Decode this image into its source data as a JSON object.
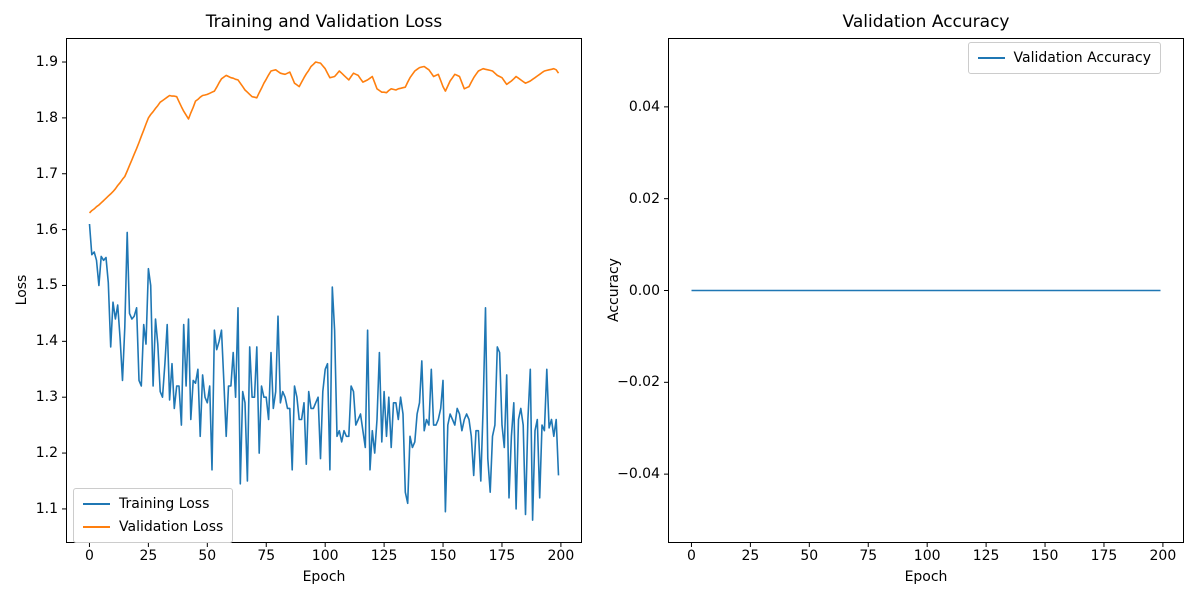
{
  "figure": {
    "background": "#ffffff",
    "axis_color": "#000000",
    "legend_border_color": "#cccccc"
  },
  "chart_data": [
    {
      "type": "line",
      "title": "Training and Validation Loss",
      "xlabel": "Epoch",
      "ylabel": "Loss",
      "xlim": [
        -9.95,
        208.95
      ],
      "ylim": [
        1.039,
        1.943
      ],
      "grid": false,
      "xticks": {
        "values": [
          0,
          25,
          50,
          75,
          100,
          125,
          150,
          175,
          200
        ],
        "labels": [
          "0",
          "25",
          "50",
          "75",
          "100",
          "125",
          "150",
          "175",
          "200"
        ]
      },
      "yticks": {
        "values": [
          1.1,
          1.2,
          1.3,
          1.4,
          1.5,
          1.6,
          1.7,
          1.8,
          1.9
        ],
        "labels": [
          "1.1",
          "1.2",
          "1.3",
          "1.4",
          "1.5",
          "1.6",
          "1.7",
          "1.8",
          "1.9"
        ]
      },
      "legend": {
        "position": "lower left",
        "items": [
          {
            "label": "Training Loss",
            "color": "#1f77b4"
          },
          {
            "label": "Validation Loss",
            "color": "#ff7f0e"
          }
        ]
      },
      "x_range": [
        0,
        199
      ],
      "series": [
        {
          "name": "Training Loss",
          "color": "#1f77b4",
          "values": [
            1.61,
            1.555,
            1.56,
            1.545,
            1.5,
            1.552,
            1.545,
            1.55,
            1.505,
            1.39,
            1.47,
            1.44,
            1.465,
            1.405,
            1.33,
            1.425,
            1.595,
            1.45,
            1.44,
            1.445,
            1.46,
            1.33,
            1.32,
            1.43,
            1.395,
            1.53,
            1.5,
            1.32,
            1.44,
            1.395,
            1.31,
            1.3,
            1.36,
            1.43,
            1.295,
            1.36,
            1.28,
            1.32,
            1.32,
            1.25,
            1.43,
            1.32,
            1.44,
            1.26,
            1.33,
            1.325,
            1.35,
            1.23,
            1.34,
            1.3,
            1.29,
            1.32,
            1.17,
            1.42,
            1.385,
            1.4,
            1.42,
            1.33,
            1.23,
            1.32,
            1.32,
            1.38,
            1.3,
            1.46,
            1.145,
            1.31,
            1.29,
            1.15,
            1.39,
            1.3,
            1.3,
            1.39,
            1.2,
            1.32,
            1.3,
            1.3,
            1.26,
            1.38,
            1.28,
            1.31,
            1.445,
            1.29,
            1.31,
            1.3,
            1.28,
            1.28,
            1.17,
            1.32,
            1.3,
            1.26,
            1.26,
            1.29,
            1.18,
            1.31,
            1.28,
            1.28,
            1.29,
            1.3,
            1.19,
            1.31,
            1.35,
            1.36,
            1.17,
            1.497,
            1.42,
            1.23,
            1.24,
            1.22,
            1.24,
            1.23,
            1.23,
            1.32,
            1.31,
            1.25,
            1.26,
            1.27,
            1.24,
            1.21,
            1.42,
            1.17,
            1.24,
            1.2,
            1.26,
            1.38,
            1.22,
            1.31,
            1.23,
            1.3,
            1.21,
            1.29,
            1.29,
            1.26,
            1.3,
            1.27,
            1.13,
            1.11,
            1.23,
            1.21,
            1.22,
            1.27,
            1.29,
            1.365,
            1.24,
            1.26,
            1.25,
            1.35,
            1.25,
            1.25,
            1.26,
            1.28,
            1.33,
            1.095,
            1.25,
            1.27,
            1.26,
            1.25,
            1.28,
            1.27,
            1.24,
            1.26,
            1.27,
            1.26,
            1.23,
            1.16,
            1.24,
            1.24,
            1.15,
            1.28,
            1.46,
            1.19,
            1.13,
            1.23,
            1.25,
            1.39,
            1.38,
            1.25,
            1.21,
            1.34,
            1.12,
            1.23,
            1.29,
            1.1,
            1.26,
            1.28,
            1.25,
            1.09,
            1.26,
            1.35,
            1.08,
            1.24,
            1.26,
            1.12,
            1.25,
            1.24,
            1.35,
            1.245,
            1.26,
            1.23,
            1.26,
            1.16
          ]
        },
        {
          "name": "Validation Loss",
          "color": "#ff7f0e",
          "values": [
            1.63,
            1.634,
            1.637,
            1.641,
            1.644,
            1.648,
            1.652,
            1.656,
            1.66,
            1.664,
            1.668,
            1.673,
            1.679,
            1.684,
            1.69,
            1.695,
            1.705,
            1.715,
            1.725,
            1.735,
            1.745,
            1.756,
            1.767,
            1.778,
            1.789,
            1.8,
            1.806,
            1.811,
            1.817,
            1.822,
            1.828,
            1.831,
            1.834,
            1.837,
            1.84,
            1.839,
            1.839,
            1.838,
            1.829,
            1.82,
            1.812,
            1.805,
            1.798,
            1.809,
            1.819,
            1.83,
            1.833,
            1.837,
            1.84,
            1.841,
            1.842,
            1.844,
            1.846,
            1.848,
            1.855,
            1.863,
            1.87,
            1.873,
            1.876,
            1.874,
            1.872,
            1.871,
            1.869,
            1.868,
            1.862,
            1.856,
            1.85,
            1.846,
            1.842,
            1.838,
            1.837,
            1.836,
            1.845,
            1.853,
            1.862,
            1.869,
            1.877,
            1.884,
            1.885,
            1.886,
            1.883,
            1.88,
            1.879,
            1.878,
            1.88,
            1.882,
            1.872,
            1.862,
            1.859,
            1.856,
            1.864,
            1.872,
            1.879,
            1.885,
            1.892,
            1.896,
            1.9,
            1.899,
            1.898,
            1.893,
            1.888,
            1.88,
            1.872,
            1.873,
            1.874,
            1.879,
            1.884,
            1.88,
            1.876,
            1.872,
            1.868,
            1.874,
            1.88,
            1.878,
            1.876,
            1.87,
            1.864,
            1.866,
            1.868,
            1.871,
            1.874,
            1.863,
            1.852,
            1.849,
            1.846,
            1.846,
            1.845,
            1.849,
            1.852,
            1.851,
            1.85,
            1.852,
            1.853,
            1.854,
            1.855,
            1.864,
            1.872,
            1.878,
            1.884,
            1.887,
            1.89,
            1.891,
            1.892,
            1.889,
            1.886,
            1.88,
            1.874,
            1.876,
            1.878,
            1.867,
            1.856,
            1.848,
            1.857,
            1.866,
            1.872,
            1.878,
            1.876,
            1.874,
            1.863,
            1.852,
            1.854,
            1.856,
            1.864,
            1.872,
            1.878,
            1.884,
            1.886,
            1.888,
            1.887,
            1.886,
            1.885,
            1.884,
            1.88,
            1.876,
            1.874,
            1.872,
            1.866,
            1.86,
            1.863,
            1.866,
            1.87,
            1.874,
            1.871,
            1.868,
            1.865,
            1.862,
            1.864,
            1.866,
            1.869,
            1.872,
            1.875,
            1.878,
            1.881,
            1.884,
            1.885,
            1.886,
            1.887,
            1.888,
            1.886,
            1.88
          ]
        }
      ]
    },
    {
      "type": "line",
      "title": "Validation Accuracy",
      "xlabel": "Epoch",
      "ylabel": "Accuracy",
      "xlim": [
        -9.95,
        208.95
      ],
      "ylim": [
        -0.055,
        0.055
      ],
      "grid": false,
      "xticks": {
        "values": [
          0,
          25,
          50,
          75,
          100,
          125,
          150,
          175,
          200
        ],
        "labels": [
          "0",
          "25",
          "50",
          "75",
          "100",
          "125",
          "150",
          "175",
          "200"
        ]
      },
      "yticks": {
        "values": [
          -0.04,
          -0.02,
          0.0,
          0.02,
          0.04
        ],
        "labels": [
          "−0.04",
          "−0.02",
          "0.00",
          "0.02",
          "0.04"
        ]
      },
      "legend": {
        "position": "upper right",
        "items": [
          {
            "label": "Validation Accuracy",
            "color": "#1f77b4"
          }
        ]
      },
      "x_range": [
        0,
        199
      ],
      "series": [
        {
          "name": "Validation Accuracy",
          "color": "#1f77b4",
          "constant_value": 0.0,
          "n_points": 200
        }
      ]
    }
  ]
}
